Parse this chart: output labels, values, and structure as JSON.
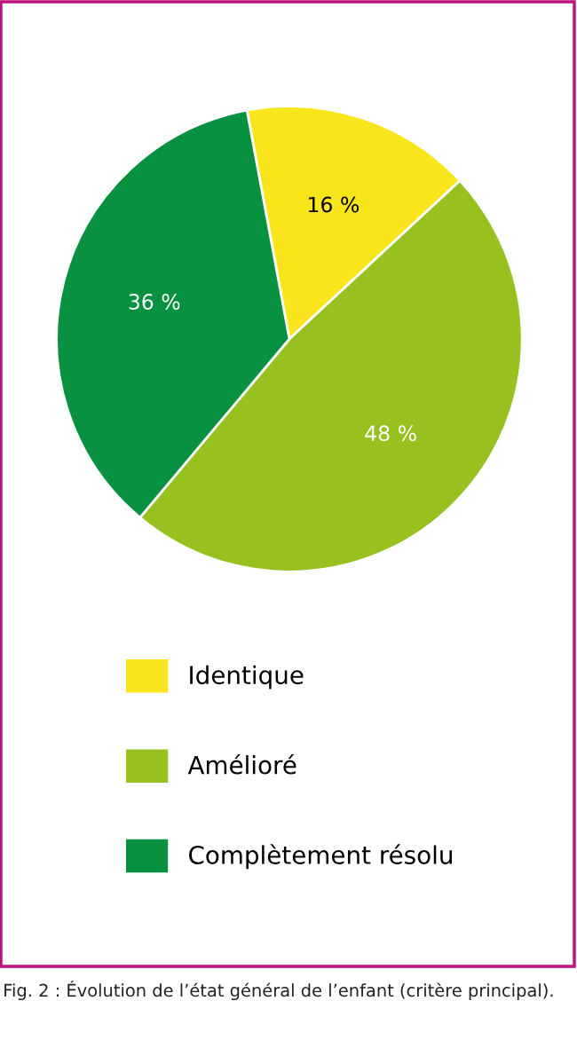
{
  "chart_data": {
    "type": "pie",
    "categories": [
      "Identique",
      "Amélioré",
      "Complètement résolu"
    ],
    "values": [
      16,
      48,
      36
    ],
    "colors": [
      "#f9e51b",
      "#97c11f",
      "#079140"
    ],
    "value_labels": [
      "16 %",
      "48 %",
      "36 %"
    ],
    "legend": "bottom",
    "annotations": [
      "Fig. 2 : Évolution de l’état général de l’enfant (critère principal)."
    ]
  }
}
